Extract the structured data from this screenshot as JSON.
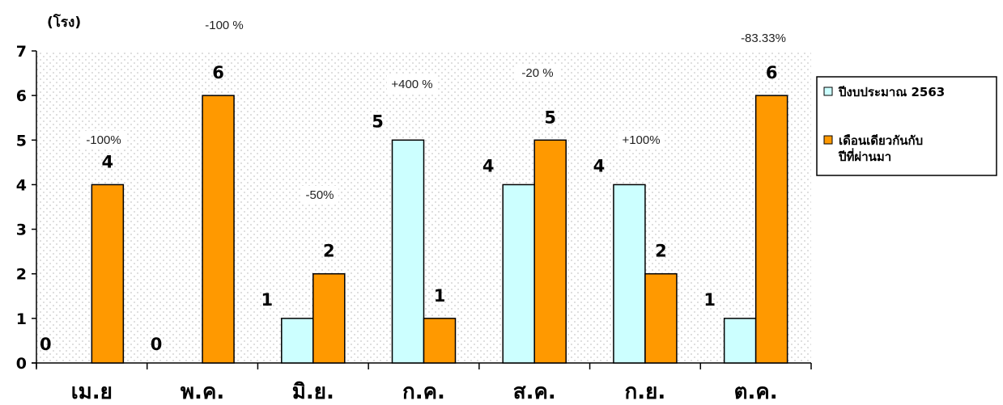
{
  "chart_data": {
    "type": "bar",
    "y_unit_label": "(โรง)",
    "ylim": [
      0,
      7
    ],
    "y_ticks": [
      0,
      1,
      2,
      3,
      4,
      5,
      6,
      7
    ],
    "categories": [
      "เม.ย",
      "พ.ค.",
      "มิ.ย.",
      "ก.ค.",
      "ส.ค.",
      "ก.ย.",
      "ต.ค."
    ],
    "series": [
      {
        "name": "ปีงบประมาณ 2563",
        "values": [
          0,
          0,
          1,
          5,
          4,
          4,
          1
        ],
        "color": "#ccffff"
      },
      {
        "name": "เดือนเดียวกันกับ ปีที่ผ่านมา",
        "legend_lines": [
          "เดือนเดียวกันกับ",
          "ปีที่ผ่านมา"
        ],
        "values": [
          4,
          6,
          2,
          1,
          5,
          2,
          6
        ],
        "color": "#ff9900"
      }
    ],
    "percent_changes": [
      "-100%",
      "-100 %",
      "-50%",
      "+400 %",
      "-20 %",
      "+100%",
      "-83.33%"
    ],
    "grid": false,
    "legend_position": "right",
    "plot_background": "#f2f2f2"
  }
}
